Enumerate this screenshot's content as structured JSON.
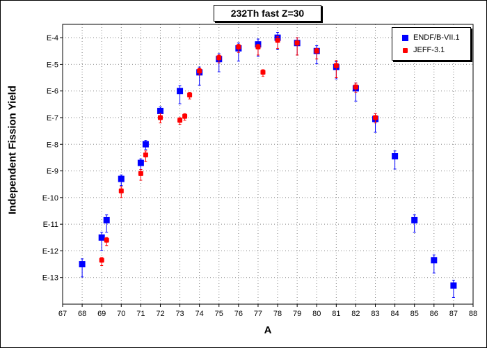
{
  "chart_data": {
    "type": "scatter",
    "title": "232Th fast Z=30",
    "xlabel": "A",
    "ylabel": "Independent Fission Yield",
    "xlim": [
      67,
      88
    ],
    "ylim_log10": [
      -14,
      -3.5
    ],
    "x_ticks": [
      "67",
      "68",
      "69",
      "70",
      "71",
      "72",
      "73",
      "74",
      "75",
      "76",
      "77",
      "78",
      "79",
      "80",
      "81",
      "82",
      "83",
      "84",
      "85",
      "86",
      "87",
      "88"
    ],
    "y_ticks": [
      "E-4",
      "E-5",
      "E-6",
      "E-7",
      "E-8",
      "E-9",
      "E-10",
      "E-11",
      "E-12",
      "E-13"
    ],
    "grid": true,
    "legend_position": "top-right",
    "series": [
      {
        "name": "ENDF/B-VII.1",
        "color": "#0000ff",
        "marker": "square",
        "points": [
          {
            "x": 68,
            "log10y": -12.5,
            "err_lo": 0.48,
            "err_hi": 0.2
          },
          {
            "x": 69,
            "log10y": -11.5,
            "err_lo": 0.48,
            "err_hi": 0.2
          },
          {
            "x": 69.25,
            "log10y": -10.85,
            "err_lo": 0.45,
            "err_hi": 0.2
          },
          {
            "x": 70,
            "log10y": -9.3,
            "err_lo": 0.25,
            "err_hi": 0.15
          },
          {
            "x": 71,
            "log10y": -8.7,
            "err_lo": 0.25,
            "err_hi": 0.15
          },
          {
            "x": 71.25,
            "log10y": -8.0,
            "err_lo": 0.2,
            "err_hi": 0.15
          },
          {
            "x": 72,
            "log10y": -6.75,
            "err_lo": 0.2,
            "err_hi": 0.15
          },
          {
            "x": 73,
            "log10y": -6.0,
            "err_lo": 0.48,
            "err_hi": 0.2
          },
          {
            "x": 74,
            "log10y": -5.3,
            "err_lo": 0.48,
            "err_hi": 0.2
          },
          {
            "x": 75,
            "log10y": -4.8,
            "err_lo": 0.48,
            "err_hi": 0.2
          },
          {
            "x": 76,
            "log10y": -4.4,
            "err_lo": 0.48,
            "err_hi": 0.2
          },
          {
            "x": 77,
            "log10y": -4.25,
            "err_lo": 0.45,
            "err_hi": 0.2
          },
          {
            "x": 78,
            "log10y": -4.0,
            "err_lo": 0.45,
            "err_hi": 0.2
          },
          {
            "x": 79,
            "log10y": -4.2,
            "err_lo": 0.45,
            "err_hi": 0.2
          },
          {
            "x": 80,
            "log10y": -4.5,
            "err_lo": 0.48,
            "err_hi": 0.2
          },
          {
            "x": 81,
            "log10y": -5.1,
            "err_lo": 0.45,
            "err_hi": 0.2
          },
          {
            "x": 82,
            "log10y": -5.9,
            "err_lo": 0.48,
            "err_hi": 0.2
          },
          {
            "x": 83,
            "log10y": -7.05,
            "err_lo": 0.5,
            "err_hi": 0.2
          },
          {
            "x": 84,
            "log10y": -8.45,
            "err_lo": 0.48,
            "err_hi": 0.2
          },
          {
            "x": 85,
            "log10y": -10.85,
            "err_lo": 0.45,
            "err_hi": 0.2
          },
          {
            "x": 86,
            "log10y": -12.35,
            "err_lo": 0.48,
            "err_hi": 0.2
          },
          {
            "x": 87,
            "log10y": -13.3,
            "err_lo": 0.45,
            "err_hi": 0.2
          }
        ]
      },
      {
        "name": "JEFF-3.1",
        "color": "#ff0000",
        "marker": "rounded-square",
        "points": [
          {
            "x": 69,
            "log10y": -12.35,
            "err_lo": 0.2,
            "err_hi": 0.1
          },
          {
            "x": 69.25,
            "log10y": -11.6,
            "err_lo": 0.2,
            "err_hi": 0.1
          },
          {
            "x": 70,
            "log10y": -9.75,
            "err_lo": 0.25,
            "err_hi": 0.15
          },
          {
            "x": 71,
            "log10y": -9.1,
            "err_lo": 0.25,
            "err_hi": 0.15
          },
          {
            "x": 71.25,
            "log10y": -8.4,
            "err_lo": 0.25,
            "err_hi": 0.15
          },
          {
            "x": 72,
            "log10y": -7.0,
            "err_lo": 0.2,
            "err_hi": 0.15
          },
          {
            "x": 73,
            "log10y": -7.1,
            "err_lo": 0.15,
            "err_hi": 0.1
          },
          {
            "x": 73.25,
            "log10y": -6.95,
            "err_lo": 0.15,
            "err_hi": 0.1
          },
          {
            "x": 73.5,
            "log10y": -6.15,
            "err_lo": 0.15,
            "err_hi": 0.1
          },
          {
            "x": 74,
            "log10y": -5.25,
            "err_lo": 0.15,
            "err_hi": 0.1
          },
          {
            "x": 75,
            "log10y": -4.75,
            "err_lo": 0.2,
            "err_hi": 0.1
          },
          {
            "x": 76,
            "log10y": -4.35,
            "err_lo": 0.2,
            "err_hi": 0.1
          },
          {
            "x": 77,
            "log10y": -4.35,
            "err_lo": 0.3,
            "err_hi": 0.1
          },
          {
            "x": 77.25,
            "log10y": -5.3,
            "err_lo": 0.15,
            "err_hi": 0.1
          },
          {
            "x": 78,
            "log10y": -4.1,
            "err_lo": 0.3,
            "err_hi": 0.15
          },
          {
            "x": 79,
            "log10y": -4.2,
            "err_lo": 0.45,
            "err_hi": 0.2
          },
          {
            "x": 80,
            "log10y": -4.5,
            "err_lo": 0.3,
            "err_hi": 0.1
          },
          {
            "x": 81,
            "log10y": -5.05,
            "err_lo": 0.45,
            "err_hi": 0.2
          },
          {
            "x": 82,
            "log10y": -5.85,
            "err_lo": 0.2,
            "err_hi": 0.15
          },
          {
            "x": 83,
            "log10y": -7.0,
            "err_lo": 0.2,
            "err_hi": 0.15
          }
        ]
      }
    ]
  }
}
